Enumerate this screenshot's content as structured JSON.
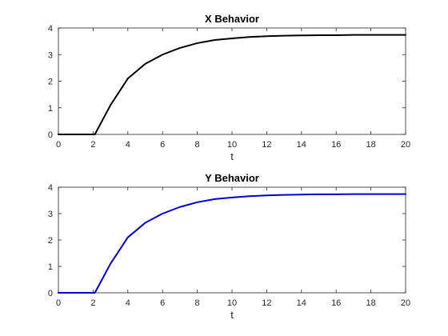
{
  "chart_data": [
    {
      "type": "line",
      "title": "X Behavior",
      "xlabel": "t",
      "ylabel": "",
      "xlim": [
        0,
        20
      ],
      "ylim": [
        0,
        4
      ],
      "xticks": [
        0,
        2,
        4,
        6,
        8,
        10,
        12,
        14,
        16,
        18,
        20
      ],
      "yticks": [
        0,
        1,
        2,
        3,
        4
      ],
      "grid": false,
      "color": "#000000",
      "series": [
        {
          "x": [
            0,
            2,
            2.1,
            3,
            4,
            5,
            6,
            7,
            8,
            9,
            10,
            11,
            12,
            13,
            14,
            15,
            16,
            17,
            18,
            19,
            20
          ],
          "y": [
            0,
            0,
            0,
            1.1,
            2.1,
            2.65,
            3.0,
            3.25,
            3.43,
            3.55,
            3.61,
            3.66,
            3.69,
            3.71,
            3.72,
            3.73,
            3.73,
            3.74,
            3.74,
            3.74,
            3.74
          ]
        }
      ]
    },
    {
      "type": "line",
      "title": "Y Behavior",
      "xlabel": "t",
      "ylabel": "",
      "xlim": [
        0,
        20
      ],
      "ylim": [
        0,
        4
      ],
      "xticks": [
        0,
        2,
        4,
        6,
        8,
        10,
        12,
        14,
        16,
        18,
        20
      ],
      "yticks": [
        0,
        1,
        2,
        3,
        4
      ],
      "grid": false,
      "color": "#0000cc",
      "series": [
        {
          "x": [
            0,
            2,
            2.1,
            3,
            4,
            5,
            6,
            7,
            8,
            9,
            10,
            11,
            12,
            13,
            14,
            15,
            16,
            17,
            18,
            19,
            20
          ],
          "y": [
            0,
            0,
            0,
            1.1,
            2.1,
            2.65,
            3.0,
            3.25,
            3.43,
            3.55,
            3.61,
            3.66,
            3.69,
            3.71,
            3.72,
            3.73,
            3.73,
            3.74,
            3.74,
            3.74,
            3.74
          ]
        }
      ]
    }
  ]
}
